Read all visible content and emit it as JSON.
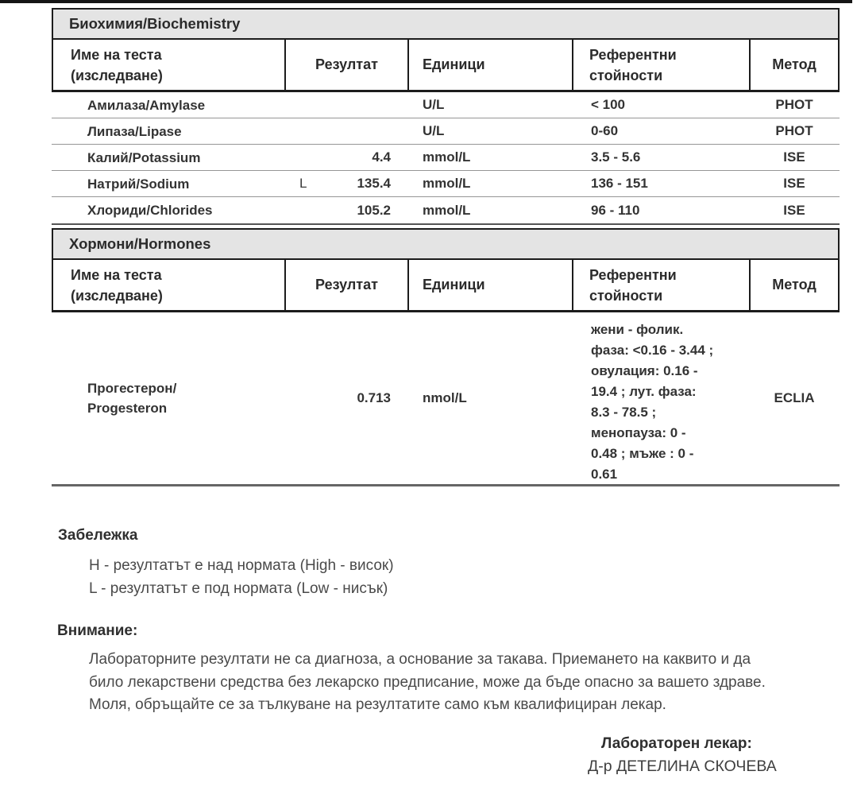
{
  "tables": [
    {
      "section_title": "Биохимия/Biochemistry",
      "columns": {
        "name": "Име на теста\n(изследване)",
        "result": "Резултат",
        "units": "Единици",
        "reference": "Референтни\nстойности",
        "method": "Метод"
      },
      "rows": [
        {
          "name": "Амилаза/Amylase",
          "flag": "",
          "result": "",
          "units": "U/L",
          "reference": "< 100",
          "method": "PHOT"
        },
        {
          "name": "Липаза/Lipase",
          "flag": "",
          "result": "",
          "units": "U/L",
          "reference": "0-60",
          "method": "PHOT"
        },
        {
          "name": "Калий/Potassium",
          "flag": "",
          "result": "4.4",
          "units": "mmol/L",
          "reference": "3.5 - 5.6",
          "method": "ISE"
        },
        {
          "name": "Натрий/Sodium",
          "flag": "L",
          "result": "135.4",
          "units": "mmol/L",
          "reference": "136 - 151",
          "method": "ISE"
        },
        {
          "name": "Хлориди/Chlorides",
          "flag": "",
          "result": "105.2",
          "units": "mmol/L",
          "reference": "96 - 110",
          "method": "ISE"
        }
      ]
    },
    {
      "section_title": "Хормони/Hormones",
      "columns": {
        "name": "Име на теста\n(изследване)",
        "result": "Резултат",
        "units": "Единици",
        "reference": "Референтни\nстойности",
        "method": "Метод"
      },
      "rows": [
        {
          "name": "Прогестерон/\nProgesteron",
          "flag": "",
          "result": "0.713",
          "units": "nmol/L",
          "reference": "жени - фолик.\nфаза: <0.16 - 3.44 ;\nовулация: 0.16 -\n19.4 ; лут. фаза:\n8.3 - 78.5 ;\nменопауза: 0 -\n0.48 ; мъже : 0 -\n0.61",
          "method": "ECLIA",
          "tall": true
        }
      ]
    }
  ],
  "notes": {
    "title": "Забележка",
    "lines": [
      "H - резултатът е над нормата (High - висок)",
      "L - резултатът е под нормата (Low - нисък)"
    ]
  },
  "warning": {
    "title": "Внимание:",
    "text": "Лабораторните резултати не са диагноза, а основание за такава. Приемането на каквито и да\nбило лекарствени средства без лекарско предписание, може да бъде опасно за вашето здраве.\nМоля, обръщайте се за тълкуване на резултатите само към квалифициран лекар."
  },
  "signature": {
    "label": "Лабораторен лекар:",
    "name": "Д-р ДЕТЕЛИНА СКОЧЕВА"
  }
}
